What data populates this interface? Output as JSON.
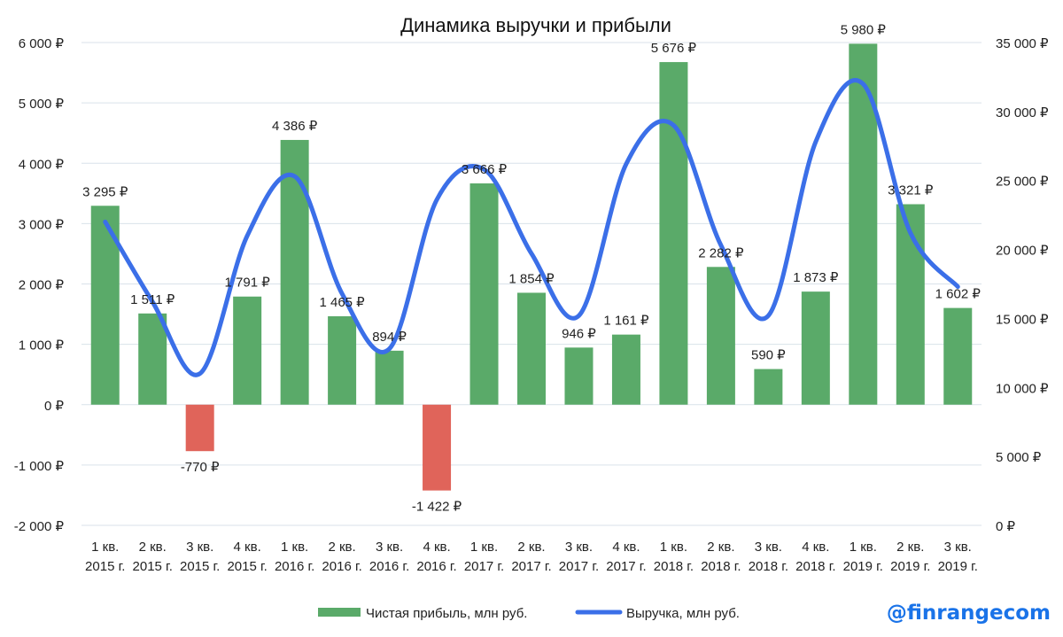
{
  "chart_data": {
    "type": "bar",
    "title": "Динамика выручки и прибыли",
    "categories": [
      [
        "1 кв.",
        "2015 г."
      ],
      [
        "2 кв.",
        "2015 г."
      ],
      [
        "3 кв.",
        "2015 г."
      ],
      [
        "4 кв.",
        "2015 г."
      ],
      [
        "1 кв.",
        "2016 г."
      ],
      [
        "2 кв.",
        "2016 г."
      ],
      [
        "3 кв.",
        "2016 г."
      ],
      [
        "4 кв.",
        "2016 г."
      ],
      [
        "1 кв.",
        "2017 г."
      ],
      [
        "2 кв.",
        "2017 г."
      ],
      [
        "3 кв.",
        "2017 г."
      ],
      [
        "4 кв.",
        "2017 г."
      ],
      [
        "1 кв.",
        "2018 г."
      ],
      [
        "2 кв.",
        "2018 г."
      ],
      [
        "3 кв.",
        "2018 г."
      ],
      [
        "4 кв.",
        "2018 г."
      ],
      [
        "1 кв.",
        "2019 г."
      ],
      [
        "2 кв.",
        "2019 г."
      ],
      [
        "3 кв.",
        "2019 г."
      ]
    ],
    "series": [
      {
        "name": "Чистая прибыль, млн руб.",
        "type": "bar",
        "axis": "left",
        "values": [
          3295,
          1511,
          -770,
          1791,
          4386,
          1465,
          894,
          -1422,
          3666,
          1854,
          946,
          1161,
          5676,
          2282,
          590,
          1873,
          5980,
          3321,
          1602
        ],
        "labels": [
          "3 295 ₽",
          "1 511 ₽",
          "-770 ₽",
          "1 791 ₽",
          "4 386 ₽",
          "1 465 ₽",
          "894 ₽",
          "-1 422 ₽",
          "3 666 ₽",
          "1 854 ₽",
          "946 ₽",
          "1 161 ₽",
          "5 676 ₽",
          "2 282 ₽",
          "590 ₽",
          "1 873 ₽",
          "5 980 ₽",
          "3 321 ₽",
          "1 602 ₽"
        ]
      },
      {
        "name": "Выручка, млн руб.",
        "type": "line",
        "axis": "right",
        "smooth": true,
        "values": [
          22000,
          16200,
          11000,
          21000,
          25300,
          16800,
          12800,
          23600,
          25800,
          19700,
          15200,
          26200,
          29000,
          20300,
          15200,
          27800,
          32000,
          21200,
          17300
        ]
      }
    ],
    "y_left": {
      "min": -2000,
      "max": 6000,
      "ticks": [
        "-2 000 ₽",
        "-1 000 ₽",
        "0 ₽",
        "1 000 ₽",
        "2 000 ₽",
        "3 000 ₽",
        "4 000 ₽",
        "5 000 ₽",
        "6 000 ₽"
      ]
    },
    "y_right": {
      "min": 0,
      "max": 35000,
      "ticks": [
        "0 ₽",
        "5 000 ₽",
        "10 000 ₽",
        "15 000 ₽",
        "20 000 ₽",
        "25 000 ₽",
        "30 000 ₽",
        "35 000 ₽"
      ]
    },
    "grid": true,
    "legend_position": "bottom",
    "colors": {
      "bar_positive": "#5aaa69",
      "bar_negative": "#e0645a",
      "line": "#3b6fe8",
      "grid": "#d9e2ea",
      "axis_text": "#222222"
    }
  },
  "watermark": "@finrangecom"
}
